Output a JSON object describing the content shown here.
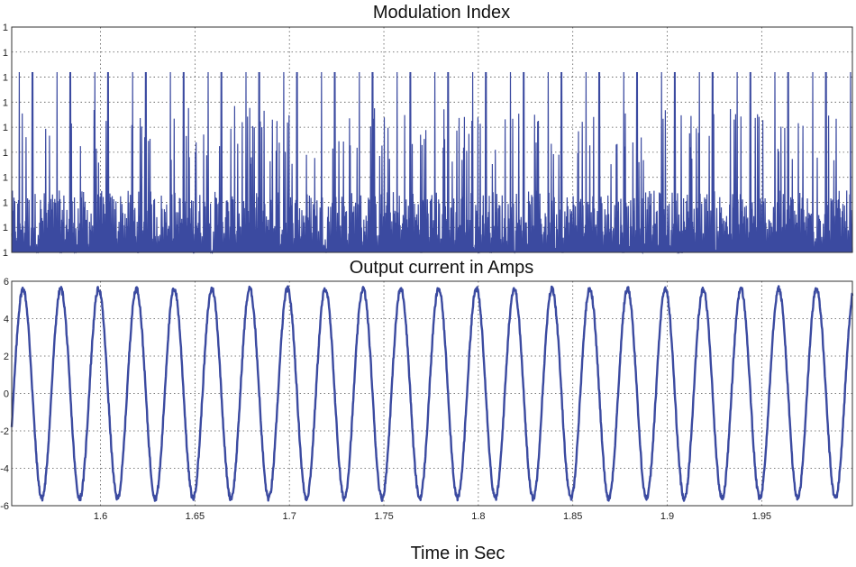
{
  "figure": {
    "xlabel": "Time in Sec"
  },
  "chart_data": [
    {
      "type": "line",
      "title": "Modulation Index",
      "xlabel": "",
      "ylabel": "",
      "xlim": [
        1.553,
        1.998
      ],
      "ylim": [
        0.9996,
        1.0
      ],
      "yticklabels": [
        "1",
        "1",
        "1",
        "1",
        "1",
        "1",
        "1",
        "1",
        "1",
        "1"
      ],
      "xticks": [
        1.6,
        1.65,
        1.7,
        1.75,
        1.8,
        1.85,
        1.9,
        1.95
      ],
      "grid": true,
      "color": "#3b4aa0",
      "series": [
        {
          "name": "modulation index",
          "description": "dense spiky waveform with ~2 tall spikes per current cycle",
          "x_start": 1.553,
          "x_end": 1.998,
          "period": 0.02,
          "spike_peak": 0.99992,
          "spike_offsets": [
            0.004,
            0.011
          ],
          "mid_spike_level": 0.99986,
          "baseline": 0.9996,
          "noise_level": 0.99965
        }
      ]
    },
    {
      "type": "line",
      "title": "Output current in Amps",
      "xlabel": "Time in Sec",
      "ylabel": "",
      "xlim": [
        1.553,
        1.998
      ],
      "ylim": [
        -6,
        6
      ],
      "yticks": [
        -6,
        -4,
        -2,
        0,
        2,
        4,
        6
      ],
      "yticklabels": [
        "-6",
        "-4",
        "-2",
        "0",
        "2",
        "4",
        "6"
      ],
      "xticks": [
        1.6,
        1.65,
        1.7,
        1.75,
        1.8,
        1.85,
        1.9,
        1.95
      ],
      "xticklabels": [
        "1.6",
        "1.65",
        "1.7",
        "1.75",
        "1.8",
        "1.85",
        "1.9",
        "1.95"
      ],
      "grid": true,
      "color": "#3b4aa0",
      "series": [
        {
          "name": "output current",
          "function": "sine",
          "amplitude": 5.6,
          "frequency_hz": 50,
          "phase_ref_zero_crossing_up": 1.554,
          "ripple": 0.15,
          "x_start": 1.553,
          "x_end": 1.998
        }
      ]
    }
  ]
}
